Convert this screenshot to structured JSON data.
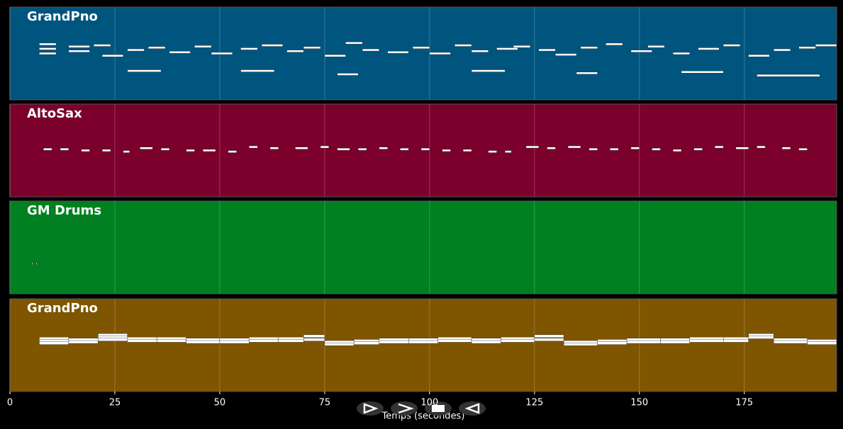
{
  "chart_data": {
    "type": "pianoroll",
    "xlabel": "Temps (secondes)",
    "xlim": [
      0,
      197
    ],
    "xticks": [
      0,
      25,
      50,
      75,
      100,
      125,
      150,
      175
    ],
    "grid": true,
    "note_color": "#ffffff",
    "tracks": [
      {
        "name": "GrandPno",
        "color": "#00557f",
        "ylim": [
          20,
          100
        ],
        "start": [
          7,
          7,
          7,
          14,
          14,
          20,
          22,
          28,
          33,
          38,
          44,
          48,
          55,
          60,
          66,
          70,
          75,
          80,
          84,
          90,
          96,
          100,
          106,
          110,
          116,
          120,
          126,
          130,
          136,
          142,
          148,
          152,
          158,
          164,
          170,
          176,
          182,
          188,
          192,
          28,
          55,
          78,
          110,
          135,
          160,
          178
        ],
        "duration": [
          4,
          4,
          4,
          5,
          5,
          4,
          5,
          4,
          4,
          5,
          4,
          5,
          4,
          5,
          4,
          4,
          5,
          4,
          4,
          5,
          4,
          5,
          4,
          4,
          5,
          4,
          4,
          5,
          4,
          4,
          5,
          4,
          4,
          5,
          4,
          5,
          4,
          4,
          5,
          8,
          8,
          5,
          8,
          5,
          10,
          15
        ],
        "pitch": [
          68,
          64,
          60,
          66,
          62,
          67,
          58,
          63,
          65,
          61,
          66,
          60,
          64,
          67,
          62,
          65,
          58,
          69,
          63,
          61,
          65,
          60,
          67,
          62,
          64,
          66,
          63,
          59,
          65,
          68,
          62,
          66,
          60,
          64,
          67,
          58,
          63,
          65,
          67,
          45,
          45,
          42,
          45,
          43,
          44,
          41
        ]
      },
      {
        "name": "AltoSax",
        "color": "#7b002c",
        "ylim": [
          20,
          100
        ],
        "start": [
          8,
          12,
          17,
          22,
          27,
          31,
          36,
          42,
          46,
          52,
          57,
          62,
          68,
          74,
          78,
          83,
          88,
          93,
          98,
          103,
          108,
          114,
          118,
          123,
          128,
          133,
          138,
          143,
          148,
          153,
          158,
          163,
          168,
          173,
          178,
          184,
          188
        ],
        "duration": [
          2,
          2,
          2,
          2,
          1.5,
          3,
          2,
          2,
          3,
          2,
          2,
          2,
          3,
          2,
          3,
          2,
          2,
          2,
          2,
          2,
          2,
          2,
          1.5,
          3,
          2,
          3,
          2,
          2,
          2,
          2,
          2,
          2,
          2,
          3,
          2,
          2,
          2
        ],
        "pitch": [
          61,
          61,
          60,
          60,
          59,
          62,
          61,
          60,
          60,
          59,
          63,
          62,
          62,
          63,
          61,
          61,
          62,
          61,
          61,
          60,
          60,
          59,
          59,
          63,
          62,
          63,
          61,
          61,
          62,
          61,
          60,
          61,
          63,
          62,
          63,
          62,
          61
        ]
      },
      {
        "name": "GM Drums",
        "color": "#008020",
        "ylim": [
          20,
          100
        ],
        "start": [
          5.2,
          6.2
        ],
        "duration": [
          0.2,
          0.2
        ],
        "pitch": [
          46,
          46
        ]
      },
      {
        "name": "GrandPno",
        "color": "#7f5500",
        "ylim": [
          20,
          100
        ],
        "start": [
          7,
          7,
          7,
          14,
          14,
          21,
          21,
          21,
          28,
          28,
          35,
          35,
          42,
          42,
          50,
          50,
          57,
          57,
          64,
          64,
          70,
          70,
          75,
          75,
          82,
          82,
          88,
          88,
          95,
          95,
          102,
          102,
          110,
          110,
          117,
          117,
          125,
          125,
          132,
          132,
          140,
          140,
          147,
          147,
          155,
          155,
          162,
          162,
          170,
          170,
          176,
          176,
          182,
          182,
          190,
          190
        ],
        "duration": [
          7,
          7,
          7,
          7,
          7,
          7,
          7,
          7,
          7,
          7,
          7,
          7,
          8,
          8,
          7,
          7,
          7,
          7,
          6,
          6,
          5,
          5,
          7,
          7,
          6,
          6,
          7,
          7,
          7,
          7,
          8,
          8,
          7,
          7,
          8,
          8,
          7,
          7,
          8,
          8,
          7,
          7,
          8,
          8,
          7,
          7,
          8,
          8,
          6,
          6,
          6,
          6,
          8,
          8,
          7,
          7
        ],
        "pitch": [
          66,
          64,
          62,
          65,
          63,
          69,
          67,
          65,
          66,
          64,
          66,
          64,
          65,
          63,
          65,
          63,
          66,
          64,
          66,
          64,
          68,
          65,
          63,
          61,
          64,
          62,
          65,
          63,
          65,
          63,
          66,
          64,
          65,
          63,
          66,
          64,
          68,
          65,
          63,
          61,
          64,
          62,
          65,
          63,
          65,
          63,
          66,
          64,
          66,
          64,
          69,
          67,
          65,
          63,
          64,
          62
        ]
      }
    ]
  }
}
